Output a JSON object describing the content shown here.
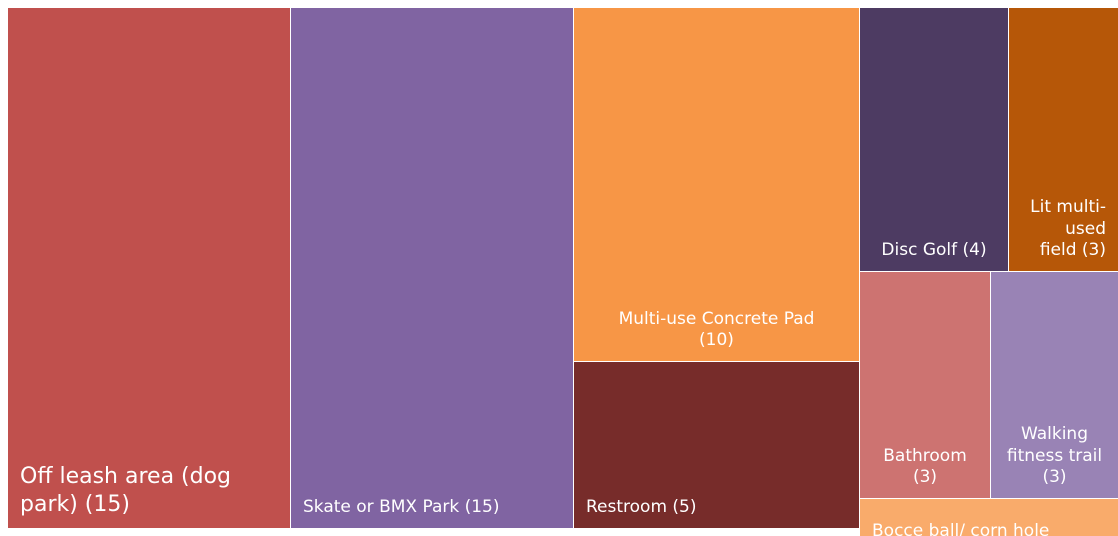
{
  "chart_data": {
    "type": "treemap",
    "title": "",
    "items": [
      {
        "label": "Off leash area (dog park) (15)",
        "lines": [
          "Off leash area (dog",
          "park) (15)"
        ],
        "value": 15,
        "color": "#C0504D"
      },
      {
        "label": "Skate or BMX Park (15)",
        "lines": [
          "Skate or BMX Park (15)"
        ],
        "value": 15,
        "color": "#8064A2"
      },
      {
        "label": "Multi-use Concrete Pad (10)",
        "lines": [
          "Multi-use Concrete Pad",
          "(10)"
        ],
        "value": 10,
        "color": "#F79646"
      },
      {
        "label": "Restroom (5)",
        "lines": [
          "Restroom (5)"
        ],
        "value": 5,
        "color": "#772C2A"
      },
      {
        "label": "Disc Golf (4)",
        "lines": [
          "Disc Golf (4)"
        ],
        "value": 4,
        "color": "#4D3B62"
      },
      {
        "label": "Lit multi-used field (3)",
        "lines": [
          "Lit multi-",
          "used",
          "field (3)"
        ],
        "value": 3,
        "color": "#B65708"
      },
      {
        "label": "Bathroom (3)",
        "lines": [
          "Bathroom",
          "(3)"
        ],
        "value": 3,
        "color": "#CD7371"
      },
      {
        "label": "Walking fitness trail (3)",
        "lines": [
          "Walking",
          "fitness trail",
          "(3)"
        ],
        "value": 3,
        "color": "#9983B5"
      },
      {
        "label": "Bocce ball/ corn hole",
        "lines": [
          "Bocce ball/ corn hole"
        ],
        "value": 1,
        "color": "#F9AB6B"
      }
    ]
  }
}
